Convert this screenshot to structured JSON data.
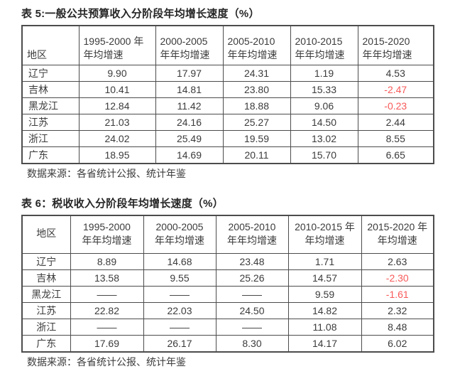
{
  "colors": {
    "negative_value": "#f85a5a",
    "text": "#3b3b3b",
    "border": "#4c4c4c"
  },
  "tables": [
    {
      "title": "表 5:一般公共预算收入分阶段年均增长速度（%）",
      "source": "数据来源：各省统计公报、统计年鉴",
      "columns": [
        {
          "lines": [
            "地区"
          ]
        },
        {
          "lines": [
            "1995-2000 年",
            "年均增速"
          ]
        },
        {
          "lines": [
            "2000-2005",
            "年年均增速"
          ]
        },
        {
          "lines": [
            "2005-2010",
            "年年均增速"
          ]
        },
        {
          "lines": [
            "2010-2015",
            "年年均增速"
          ]
        },
        {
          "lines": [
            "2015-2020",
            "年年均增速"
          ]
        }
      ],
      "rows": [
        {
          "region": "辽宁",
          "values": [
            "9.90",
            "17.97",
            "24.31",
            "1.19",
            "4.53"
          ]
        },
        {
          "region": "吉林",
          "values": [
            "10.41",
            "14.81",
            "23.80",
            "15.33",
            "-2.47"
          ]
        },
        {
          "region": "黑龙江",
          "values": [
            "12.84",
            "11.42",
            "18.88",
            "9.06",
            "-0.23"
          ]
        },
        {
          "region": "江苏",
          "values": [
            "21.03",
            "24.16",
            "25.27",
            "14.50",
            "2.44"
          ]
        },
        {
          "region": "浙江",
          "values": [
            "24.02",
            "25.49",
            "19.59",
            "13.02",
            "8.55"
          ]
        },
        {
          "region": "广东",
          "values": [
            "18.95",
            "14.69",
            "20.11",
            "15.70",
            "6.65"
          ]
        }
      ]
    },
    {
      "title": "表 6：税收收入分阶段年均增长速度（%）",
      "source": "数据来源：各省统计公报、统计年鉴",
      "columns": [
        {
          "lines": [
            "地区"
          ]
        },
        {
          "lines": [
            "1995-2000",
            "年年均增速"
          ]
        },
        {
          "lines": [
            "2000-2005",
            "年年均增速"
          ]
        },
        {
          "lines": [
            "2005-2010",
            "年年均增速"
          ]
        },
        {
          "lines": [
            "2010-2015 年",
            "年均增速"
          ]
        },
        {
          "lines": [
            "2015-2020 年",
            "年均增速"
          ]
        }
      ],
      "rows": [
        {
          "region": "辽宁",
          "values": [
            "8.89",
            "14.68",
            "23.48",
            "1.71",
            "2.63"
          ]
        },
        {
          "region": "吉林",
          "values": [
            "13.58",
            "9.55",
            "25.26",
            "14.57",
            "-2.30"
          ]
        },
        {
          "region": "黑龙江",
          "values": [
            "——",
            "——",
            "——",
            "9.59",
            "-1.61"
          ]
        },
        {
          "region": "江苏",
          "values": [
            "22.82",
            "22.03",
            "24.50",
            "14.82",
            "2.32"
          ]
        },
        {
          "region": "浙江",
          "values": [
            "——",
            "——",
            "——",
            "11.08",
            "8.48"
          ]
        },
        {
          "region": "广东",
          "values": [
            "17.69",
            "26.17",
            "8.30",
            "14.17",
            "6.02"
          ]
        }
      ]
    }
  ]
}
